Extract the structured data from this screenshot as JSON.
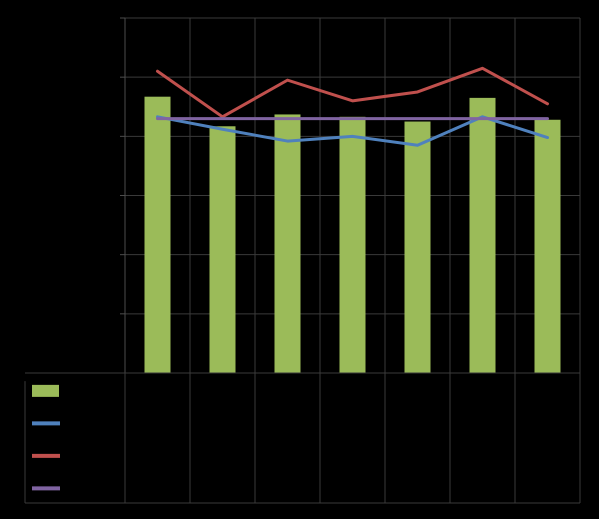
{
  "chart_data": {
    "type": "bar",
    "title": "",
    "xlabel": "",
    "ylabel": "",
    "categories": [
      "",
      "",
      "",
      "",
      "",
      "",
      ""
    ],
    "ylim": [
      0,
      6
    ],
    "grid": true,
    "legend_placement": "bottom-table",
    "series": [
      {
        "type": "bar",
        "color": "#9bbb59",
        "values": [
          4.67,
          4.17,
          4.37,
          4.33,
          4.25,
          4.65,
          4.28
        ]
      },
      {
        "type": "line",
        "color": "#4f81bd",
        "values": [
          4.33,
          4.12,
          3.92,
          4.0,
          3.85,
          4.33,
          3.98
        ]
      },
      {
        "type": "line",
        "color": "#c0504d",
        "values": [
          5.1,
          4.33,
          4.95,
          4.6,
          4.75,
          5.15,
          4.55
        ]
      },
      {
        "type": "line",
        "color": "#8064a2",
        "values": [
          4.3,
          4.3,
          4.3,
          4.3,
          4.3,
          4.3,
          4.3
        ]
      }
    ]
  },
  "colors": {
    "background": "#000000",
    "gridline": "#3a3a3a",
    "axis": "#4d4d4d"
  }
}
